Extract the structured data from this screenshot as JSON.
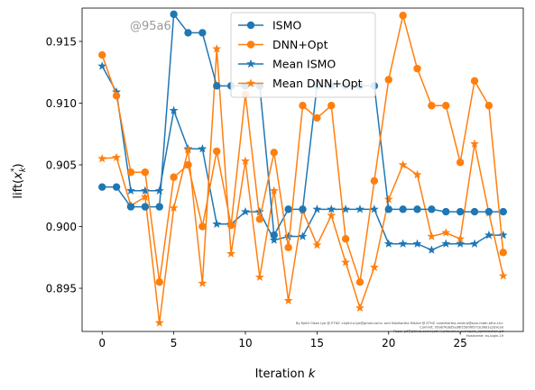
{
  "chart_data": {
    "type": "line",
    "xlabel": "Iteration k",
    "ylabel": "lift(x_k^*)",
    "xlim": [
      -1.4,
      29.4
    ],
    "ylim": [
      0.8915,
      0.9177
    ],
    "x_ticks": [
      0,
      5,
      10,
      15,
      20,
      25
    ],
    "y_ticks": [
      0.895,
      0.9,
      0.905,
      0.91,
      0.915
    ],
    "y_tick_labels": [
      "0.895",
      "0.900",
      "0.905",
      "0.910",
      "0.915"
    ],
    "grid": false,
    "legend_placement": "top-center",
    "watermark": "@95a6",
    "footnote": [
      "By Kjetil Olsen Lye @ ETHZ <kjetil.o.lye@gmail.com> and Siddhartha Mishra @ ETHZ <siddhartha.mishra@sam.math.ethz.ch>",
      "Commit: 95a67fe8d5ed6f25d06f371b36d1e2b9ca0",
      "Repo: git@github.com:kjetil-lye/iterative_surrogate_optimization.git",
      "Hostname: eu-login-19"
    ],
    "x": [
      0,
      1,
      2,
      3,
      4,
      5,
      6,
      7,
      8,
      9,
      10,
      11,
      12,
      13,
      14,
      15,
      16,
      17,
      18,
      19,
      20,
      21,
      22,
      23,
      24,
      25,
      26,
      27,
      28
    ],
    "series": [
      {
        "name": "ISMO",
        "color": "#1f77b4",
        "marker": "circle",
        "values": [
          0.9032,
          0.9032,
          0.9016,
          0.9016,
          0.9016,
          0.9172,
          0.9157,
          0.9157,
          0.9114,
          0.9114,
          0.9114,
          0.9114,
          0.8993,
          0.9014,
          0.9014,
          0.9114,
          0.9114,
          0.9114,
          0.9114,
          0.9114,
          0.9014,
          0.9014,
          0.9014,
          0.9014,
          0.9012,
          0.9012,
          0.9012,
          0.9012,
          0.9012
        ]
      },
      {
        "name": "DNN+Opt",
        "color": "#ff7f0e",
        "marker": "circle",
        "values": [
          0.9139,
          0.9106,
          0.9044,
          0.9044,
          0.8955,
          0.904,
          0.905,
          0.9,
          0.9061,
          0.9001,
          0.9107,
          0.9006,
          0.906,
          0.8983,
          0.9098,
          0.9088,
          0.9098,
          0.899,
          0.8955,
          0.9037,
          0.9119,
          0.9171,
          0.9128,
          0.9098,
          0.9098,
          0.9052,
          0.9118,
          0.9098,
          0.8979
        ]
      },
      {
        "name": "Mean ISMO",
        "color": "#1f77b4",
        "marker": "star",
        "values": [
          0.913,
          0.9109,
          0.9029,
          0.9029,
          0.9029,
          0.9094,
          0.9063,
          0.9063,
          0.9002,
          0.9002,
          0.9012,
          0.9012,
          0.8989,
          0.8992,
          0.8992,
          0.9014,
          0.9014,
          0.9014,
          0.9014,
          0.9014,
          0.8986,
          0.8986,
          0.8986,
          0.8981,
          0.8986,
          0.8986,
          0.8986,
          0.8993,
          0.8993
        ]
      },
      {
        "name": "Mean DNN+Opt",
        "color": "#ff7f0e",
        "marker": "star",
        "values": [
          0.9055,
          0.9056,
          0.9017,
          0.9024,
          0.8922,
          0.9015,
          0.9062,
          0.8954,
          0.9144,
          0.8978,
          0.9053,
          0.8959,
          0.9029,
          0.894,
          0.9013,
          0.8985,
          0.9009,
          0.8971,
          0.8934,
          0.8967,
          0.9022,
          0.905,
          0.9042,
          0.8992,
          0.8995,
          0.899,
          0.9067,
          0.9011,
          0.896
        ]
      }
    ]
  }
}
